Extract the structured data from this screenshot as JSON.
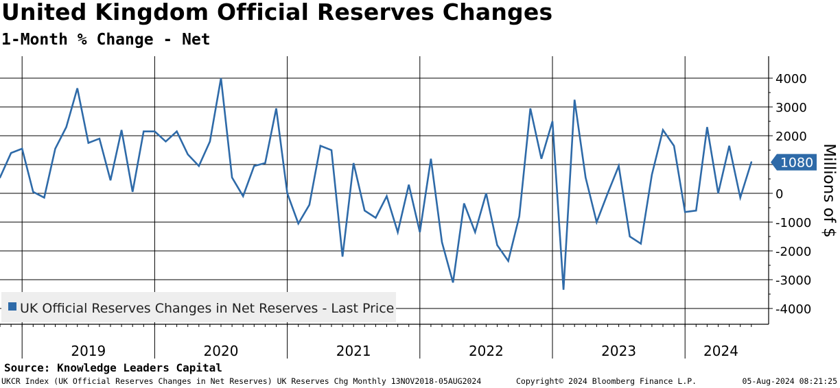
{
  "header": {
    "title": "United Kingdom Official Reserves Changes",
    "subtitle": "1-Month % Change - Net"
  },
  "source": "Source: Knowledge Leaders Capital",
  "footer": {
    "left": "UKCR Index (UK Official Reserves Changes in Net Reserves) UK Reserves Chg  Monthly 13NOV2018-05AUG2024",
    "middle": "Copyright© 2024 Bloomberg Finance L.P.",
    "right": "05-Aug-2024 08:21:25"
  },
  "chart_data": {
    "type": "line",
    "title": "United Kingdom Official Reserves Changes",
    "subtitle": "1-Month % Change - Net",
    "xlabel": "",
    "ylabel": "Millions of $",
    "ylim": [
      -4500,
      4700
    ],
    "yticks": [
      4000,
      3000,
      2000,
      1000,
      0,
      -1000,
      -2000,
      -3000,
      -4000
    ],
    "ytick_labels": [
      "4000",
      "3000",
      "2000",
      "1000",
      "0",
      "-1000",
      "-2000",
      "-3000",
      "-4000"
    ],
    "x_start": "2018-11",
    "x_end": "2024-07",
    "year_labels": [
      "2019",
      "2020",
      "2021",
      "2022",
      "2023",
      "2024"
    ],
    "grid": true,
    "legend": "bottom-left",
    "last_value_label": "1080",
    "series": [
      {
        "name": "UK Official Reserves Changes in Net Reserves - Last Price",
        "color": "#2e6aa8",
        "values": [
          550,
          1400,
          1550,
          50,
          -150,
          1550,
          2300,
          3650,
          1750,
          1900,
          450,
          2200,
          50,
          2150,
          2150,
          1800,
          2150,
          1350,
          950,
          1800,
          4000,
          550,
          -100,
          950,
          1050,
          2950,
          0,
          -1050,
          -400,
          1650,
          1500,
          -2200,
          1050,
          -600,
          -850,
          -100,
          -1350,
          300,
          -1350,
          1200,
          -1700,
          -3100,
          -350,
          -1350,
          0,
          -1800,
          -2350,
          -800,
          2950,
          1200,
          2500,
          -3350,
          3250,
          550,
          -1000,
          0,
          950,
          -1500,
          -1750,
          650,
          2200,
          1650,
          -650,
          -600,
          2300,
          0,
          1650,
          -150,
          1080
        ]
      }
    ]
  }
}
